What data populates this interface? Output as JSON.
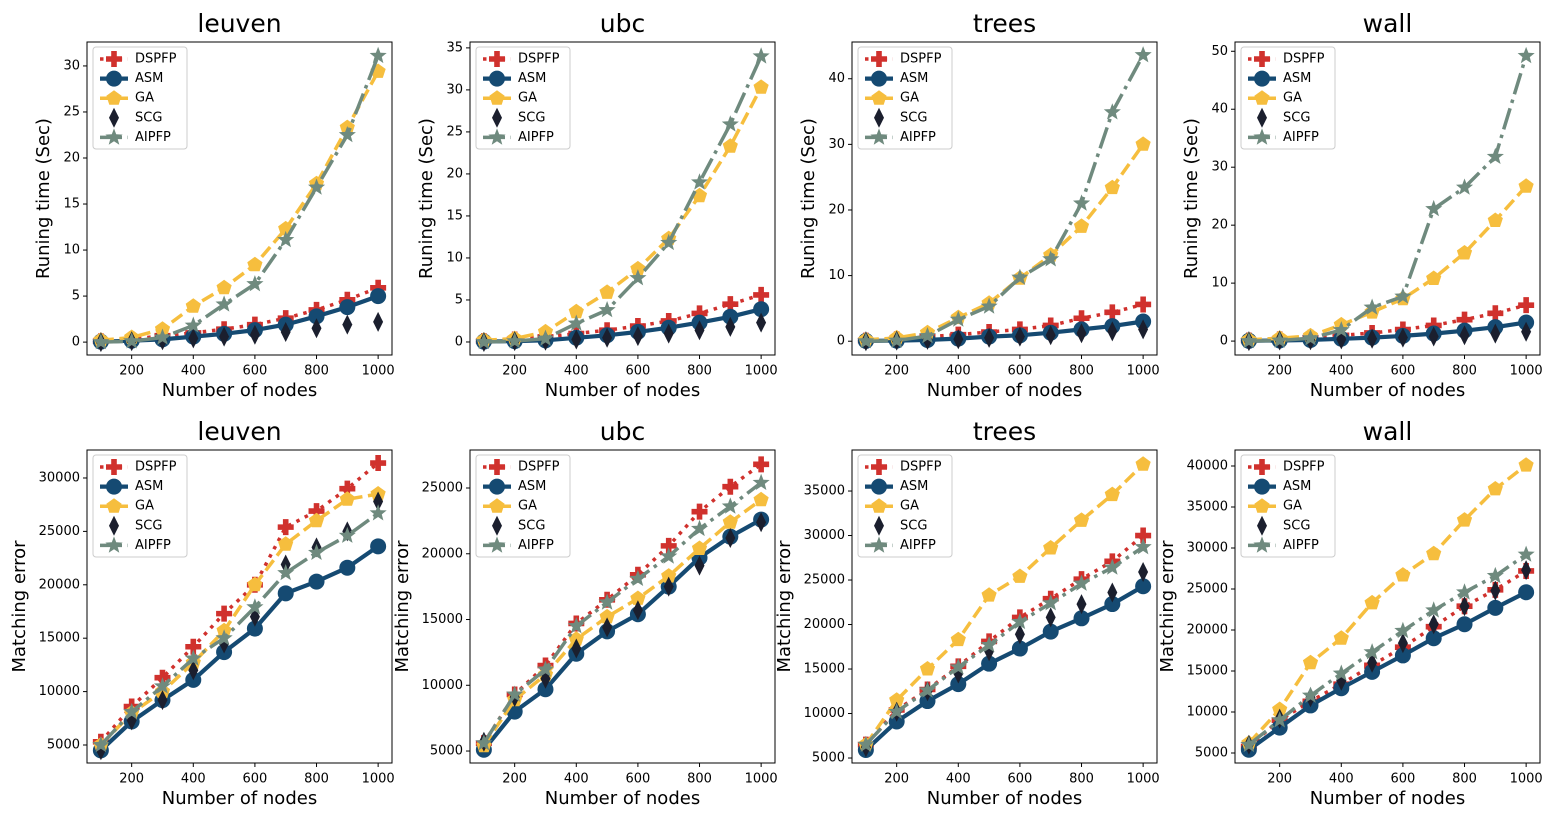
{
  "chart_data": [
    {
      "type": "line",
      "title": "leuven",
      "xlabel": "Number of nodes",
      "ylabel": "Runing time (Sec)",
      "x": [
        100,
        200,
        300,
        400,
        500,
        600,
        700,
        800,
        900,
        1000
      ],
      "xlim": [
        55,
        1045
      ],
      "xticks": [
        200,
        400,
        600,
        800,
        1000
      ],
      "ylim": [
        -1.4,
        32.6
      ],
      "yticks": [
        0,
        5,
        10,
        15,
        20,
        25,
        30
      ],
      "legend": "upper left",
      "series": [
        {
          "name": "DSPFP",
          "color": "#d0312d",
          "linestyle": "dotted",
          "marker": "plus",
          "values": [
            0.1,
            0.3,
            0.7,
            1.0,
            1.4,
            1.9,
            2.6,
            3.5,
            4.6,
            5.9
          ]
        },
        {
          "name": "ASM",
          "color": "#154a72",
          "linestyle": "solid",
          "marker": "circle",
          "values": [
            0.05,
            0.15,
            0.3,
            0.6,
            0.9,
            1.3,
            1.9,
            2.8,
            3.8,
            5.0
          ]
        },
        {
          "name": "GA",
          "color": "#f6be3e",
          "linestyle": "dashed",
          "marker": "pentagon",
          "values": [
            0.2,
            0.5,
            1.4,
            3.9,
            5.9,
            8.4,
            12.3,
            17.2,
            23.3,
            29.4
          ]
        },
        {
          "name": "SCG",
          "color": "#1b1f2e",
          "linestyle": "none",
          "marker": "thin-diamond",
          "values": [
            0,
            0.1,
            0.2,
            0.4,
            0.6,
            0.8,
            1.1,
            1.5,
            1.9,
            2.2
          ]
        },
        {
          "name": "AIPFP",
          "color": "#6f8a7e",
          "linestyle": "dashdot",
          "marker": "star",
          "values": [
            0,
            0.1,
            0.5,
            1.8,
            4.1,
            6.3,
            11.1,
            16.8,
            22.5,
            31.1
          ]
        }
      ]
    },
    {
      "type": "line",
      "title": "ubc",
      "xlabel": "Number of nodes",
      "ylabel": "Runing time (Sec)",
      "x": [
        100,
        200,
        300,
        400,
        500,
        600,
        700,
        800,
        900,
        1000
      ],
      "xlim": [
        55,
        1045
      ],
      "xticks": [
        200,
        400,
        600,
        800,
        1000
      ],
      "ylim": [
        -1.55,
        35.7
      ],
      "yticks": [
        0,
        5,
        10,
        15,
        20,
        25,
        30,
        35
      ],
      "legend": "upper left",
      "series": [
        {
          "name": "DSPFP",
          "color": "#d0312d",
          "linestyle": "dotted",
          "marker": "plus",
          "values": [
            0.1,
            0.3,
            0.6,
            1.0,
            1.4,
            1.9,
            2.5,
            3.4,
            4.5,
            5.6
          ]
        },
        {
          "name": "ASM",
          "color": "#154a72",
          "linestyle": "solid",
          "marker": "circle",
          "values": [
            0.05,
            0.1,
            0.2,
            0.5,
            0.8,
            1.2,
            1.7,
            2.3,
            3.0,
            3.9
          ]
        },
        {
          "name": "GA",
          "color": "#f6be3e",
          "linestyle": "dashed",
          "marker": "pentagon",
          "values": [
            0.2,
            0.4,
            1.2,
            3.6,
            5.9,
            8.7,
            12.3,
            17.4,
            23.3,
            30.3
          ]
        },
        {
          "name": "SCG",
          "color": "#1b1f2e",
          "linestyle": "none",
          "marker": "thin-diamond",
          "values": [
            0,
            0.1,
            0.15,
            0.3,
            0.5,
            0.7,
            1.0,
            1.4,
            1.8,
            2.3
          ]
        },
        {
          "name": "AIPFP",
          "color": "#6f8a7e",
          "linestyle": "dashdot",
          "marker": "star",
          "values": [
            0,
            0.1,
            0.4,
            2.2,
            3.8,
            7.6,
            11.8,
            19.0,
            25.9,
            34.0
          ]
        }
      ]
    },
    {
      "type": "line",
      "title": "trees",
      "xlabel": "Number of nodes",
      "ylabel": "Runing time (Sec)",
      "x": [
        100,
        200,
        300,
        400,
        500,
        600,
        700,
        800,
        900,
        1000
      ],
      "xlim": [
        55,
        1045
      ],
      "xticks": [
        200,
        400,
        600,
        800,
        1000
      ],
      "ylim": [
        -2.1,
        45.6
      ],
      "yticks": [
        0,
        10,
        20,
        30,
        40
      ],
      "legend": "upper left",
      "series": [
        {
          "name": "DSPFP",
          "color": "#d0312d",
          "linestyle": "dotted",
          "marker": "plus",
          "values": [
            0.1,
            0.3,
            0.7,
            1.0,
            1.4,
            1.8,
            2.4,
            3.5,
            4.4,
            5.6
          ]
        },
        {
          "name": "ASM",
          "color": "#154a72",
          "linestyle": "solid",
          "marker": "circle",
          "values": [
            0.05,
            0.1,
            0.2,
            0.4,
            0.7,
            0.9,
            1.3,
            1.8,
            2.3,
            3.0
          ]
        },
        {
          "name": "GA",
          "color": "#f6be3e",
          "linestyle": "dashed",
          "marker": "pentagon",
          "values": [
            0.2,
            0.5,
            1.3,
            3.6,
            5.8,
            9.6,
            13.1,
            17.5,
            23.4,
            30.0
          ]
        },
        {
          "name": "SCG",
          "color": "#1b1f2e",
          "linestyle": "none",
          "marker": "thin-diamond",
          "values": [
            0,
            0.1,
            0.2,
            0.3,
            0.5,
            0.7,
            0.9,
            1.2,
            1.5,
            1.8
          ]
        },
        {
          "name": "AIPFP",
          "color": "#6f8a7e",
          "linestyle": "dashdot",
          "marker": "star",
          "values": [
            0,
            0.1,
            0.8,
            3.3,
            5.3,
            9.7,
            12.5,
            21.0,
            34.9,
            43.6
          ]
        }
      ]
    },
    {
      "type": "line",
      "title": "wall",
      "xlabel": "Number of nodes",
      "ylabel": "Runing time (Sec)",
      "x": [
        100,
        200,
        300,
        400,
        500,
        600,
        700,
        800,
        900,
        1000
      ],
      "xlim": [
        55,
        1045
      ],
      "xticks": [
        200,
        400,
        600,
        800,
        1000
      ],
      "ylim": [
        -2.4,
        51.6
      ],
      "yticks": [
        0,
        10,
        20,
        30,
        40,
        50
      ],
      "legend": "upper left",
      "series": [
        {
          "name": "DSPFP",
          "color": "#d0312d",
          "linestyle": "dotted",
          "marker": "plus",
          "values": [
            0.1,
            0.3,
            0.6,
            1.0,
            1.4,
            2.0,
            2.7,
            3.7,
            4.8,
            6.2
          ]
        },
        {
          "name": "ASM",
          "color": "#154a72",
          "linestyle": "solid",
          "marker": "circle",
          "values": [
            0.05,
            0.1,
            0.2,
            0.4,
            0.6,
            0.9,
            1.3,
            1.8,
            2.4,
            3.2
          ]
        },
        {
          "name": "GA",
          "color": "#f6be3e",
          "linestyle": "dashed",
          "marker": "pentagon",
          "values": [
            0.2,
            0.5,
            0.9,
            2.8,
            5.0,
            7.3,
            10.8,
            15.2,
            20.8,
            26.7
          ]
        },
        {
          "name": "SCG",
          "color": "#1b1f2e",
          "linestyle": "none",
          "marker": "thin-diamond",
          "values": [
            0,
            0.1,
            0.15,
            0.3,
            0.4,
            0.6,
            0.8,
            1.0,
            1.3,
            1.6
          ]
        },
        {
          "name": "AIPFP",
          "color": "#6f8a7e",
          "linestyle": "dashdot",
          "marker": "star",
          "values": [
            0,
            0.1,
            0.5,
            1.9,
            5.8,
            7.7,
            22.8,
            26.5,
            31.8,
            49.2
          ]
        }
      ]
    },
    {
      "type": "line",
      "title": "leuven",
      "xlabel": "Number of nodes",
      "ylabel": "Matching error",
      "x": [
        100,
        200,
        300,
        400,
        500,
        600,
        700,
        800,
        900,
        1000
      ],
      "xlim": [
        55,
        1045
      ],
      "xticks": [
        200,
        400,
        600,
        800,
        1000
      ],
      "ylim": [
        3315,
        32620
      ],
      "yticks": [
        5000,
        10000,
        15000,
        20000,
        25000,
        30000
      ],
      "legend": "upper left",
      "series": [
        {
          "name": "DSPFP",
          "color": "#d0312d",
          "linestyle": "dotted",
          "marker": "plus",
          "values": [
            5300,
            8600,
            11300,
            14200,
            17300,
            20000,
            25400,
            26900,
            29000,
            31400
          ]
        },
        {
          "name": "ASM",
          "color": "#154a72",
          "linestyle": "solid",
          "marker": "circle",
          "values": [
            4500,
            7200,
            9200,
            11100,
            13700,
            15900,
            19200,
            20300,
            21600,
            23600
          ]
        },
        {
          "name": "GA",
          "color": "#f6be3e",
          "linestyle": "dashed",
          "marker": "pentagon",
          "values": [
            5000,
            8000,
            10000,
            12700,
            15700,
            20000,
            23800,
            26000,
            28000,
            28500
          ]
        },
        {
          "name": "SCG",
          "color": "#1b1f2e",
          "linestyle": "none",
          "marker": "thin-diamond",
          "values": [
            4500,
            7300,
            9200,
            12000,
            14500,
            17000,
            21900,
            23500,
            25000,
            27800
          ]
        },
        {
          "name": "AIPFP",
          "color": "#6f8a7e",
          "linestyle": "dashdot",
          "marker": "star",
          "values": [
            5000,
            8100,
            10500,
            13100,
            15000,
            17900,
            21100,
            23000,
            24600,
            26700
          ]
        }
      ]
    },
    {
      "type": "line",
      "title": "ubc",
      "xlabel": "Number of nodes",
      "ylabel": "Matching error",
      "x": [
        100,
        200,
        300,
        400,
        500,
        600,
        700,
        800,
        900,
        1000
      ],
      "xlim": [
        55,
        1045
      ],
      "xticks": [
        200,
        400,
        600,
        800,
        1000
      ],
      "ylim": [
        4090,
        27890
      ],
      "yticks": [
        5000,
        10000,
        15000,
        20000,
        25000
      ],
      "legend": "upper left",
      "series": [
        {
          "name": "DSPFP",
          "color": "#d0312d",
          "linestyle": "dotted",
          "marker": "plus",
          "values": [
            5600,
            9300,
            11500,
            14700,
            16500,
            18400,
            20600,
            23200,
            25100,
            26800
          ]
        },
        {
          "name": "ASM",
          "color": "#154a72",
          "linestyle": "solid",
          "marker": "circle",
          "values": [
            5100,
            8000,
            9700,
            12400,
            14100,
            15400,
            17500,
            19700,
            21300,
            22600
          ]
        },
        {
          "name": "GA",
          "color": "#f6be3e",
          "linestyle": "dashed",
          "marker": "pentagon",
          "values": [
            5400,
            8900,
            10800,
            13500,
            15200,
            16600,
            18300,
            20400,
            22400,
            24100
          ]
        },
        {
          "name": "SCG",
          "color": "#1b1f2e",
          "linestyle": "none",
          "marker": "thin-diamond",
          "values": [
            5700,
            9100,
            10500,
            12800,
            14400,
            15700,
            17500,
            19100,
            21200,
            22400
          ]
        },
        {
          "name": "AIPFP",
          "color": "#6f8a7e",
          "linestyle": "dashdot",
          "marker": "star",
          "values": [
            5600,
            9300,
            11200,
            14500,
            16300,
            18100,
            19800,
            21900,
            23600,
            25400
          ]
        }
      ]
    },
    {
      "type": "line",
      "title": "trees",
      "xlabel": "Number of nodes",
      "ylabel": "Matching error",
      "x": [
        100,
        200,
        300,
        400,
        500,
        600,
        700,
        800,
        900,
        1000
      ],
      "xlim": [
        55,
        1045
      ],
      "xticks": [
        200,
        400,
        600,
        800,
        1000
      ],
      "ylim": [
        4440,
        39610
      ],
      "yticks": [
        5000,
        10000,
        15000,
        20000,
        25000,
        30000,
        35000
      ],
      "legend": "upper left",
      "series": [
        {
          "name": "DSPFP",
          "color": "#d0312d",
          "linestyle": "dotted",
          "marker": "plus",
          "values": [
            6500,
            10400,
            12700,
            15300,
            18100,
            20800,
            22900,
            25100,
            27100,
            30000
          ]
        },
        {
          "name": "ASM",
          "color": "#154a72",
          "linestyle": "solid",
          "marker": "circle",
          "values": [
            5900,
            9100,
            11400,
            13300,
            15600,
            17300,
            19200,
            20700,
            22300,
            24300
          ]
        },
        {
          "name": "GA",
          "color": "#f6be3e",
          "linestyle": "dashed",
          "marker": "pentagon",
          "values": [
            6500,
            11500,
            15000,
            18300,
            23300,
            25400,
            28600,
            31700,
            34600,
            38000
          ]
        },
        {
          "name": "SCG",
          "color": "#1b1f2e",
          "linestyle": "none",
          "marker": "thin-diamond",
          "values": [
            6200,
            10200,
            12500,
            14500,
            17000,
            18900,
            20800,
            22300,
            23600,
            25900
          ]
        },
        {
          "name": "AIPFP",
          "color": "#6f8a7e",
          "linestyle": "dashdot",
          "marker": "star",
          "values": [
            6500,
            10200,
            12600,
            15200,
            17700,
            20300,
            22400,
            24600,
            26400,
            28700
          ]
        }
      ]
    },
    {
      "type": "line",
      "title": "wall",
      "xlabel": "Number of nodes",
      "ylabel": "Matching error",
      "x": [
        100,
        200,
        300,
        400,
        500,
        600,
        700,
        800,
        900,
        1000
      ],
      "xlim": [
        55,
        1045
      ],
      "xticks": [
        200,
        400,
        600,
        800,
        1000
      ],
      "ylim": [
        3780,
        41950
      ],
      "yticks": [
        5000,
        10000,
        15000,
        20000,
        25000,
        30000,
        35000,
        40000
      ],
      "legend": "upper left",
      "series": [
        {
          "name": "DSPFP",
          "color": "#d0312d",
          "linestyle": "dotted",
          "marker": "plus",
          "values": [
            5800,
            9000,
            11300,
            13400,
            15700,
            17900,
            20400,
            22900,
            24900,
            27200
          ]
        },
        {
          "name": "ASM",
          "color": "#154a72",
          "linestyle": "solid",
          "marker": "circle",
          "values": [
            5400,
            8100,
            10800,
            12900,
            14900,
            16900,
            19000,
            20700,
            22700,
            24600
          ]
        },
        {
          "name": "GA",
          "color": "#f6be3e",
          "linestyle": "dashed",
          "marker": "pentagon",
          "values": [
            6200,
            10300,
            16000,
            19000,
            23300,
            26700,
            29300,
            33400,
            37200,
            40100
          ]
        },
        {
          "name": "SCG",
          "color": "#1b1f2e",
          "linestyle": "none",
          "marker": "thin-diamond",
          "values": [
            6000,
            9200,
            11800,
            13800,
            16000,
            18400,
            20700,
            22900,
            24800,
            27300
          ]
        },
        {
          "name": "AIPFP",
          "color": "#6f8a7e",
          "linestyle": "dashdot",
          "marker": "star",
          "values": [
            6000,
            9000,
            12000,
            14700,
            17300,
            19900,
            22400,
            24600,
            26600,
            29200
          ]
        }
      ]
    }
  ]
}
